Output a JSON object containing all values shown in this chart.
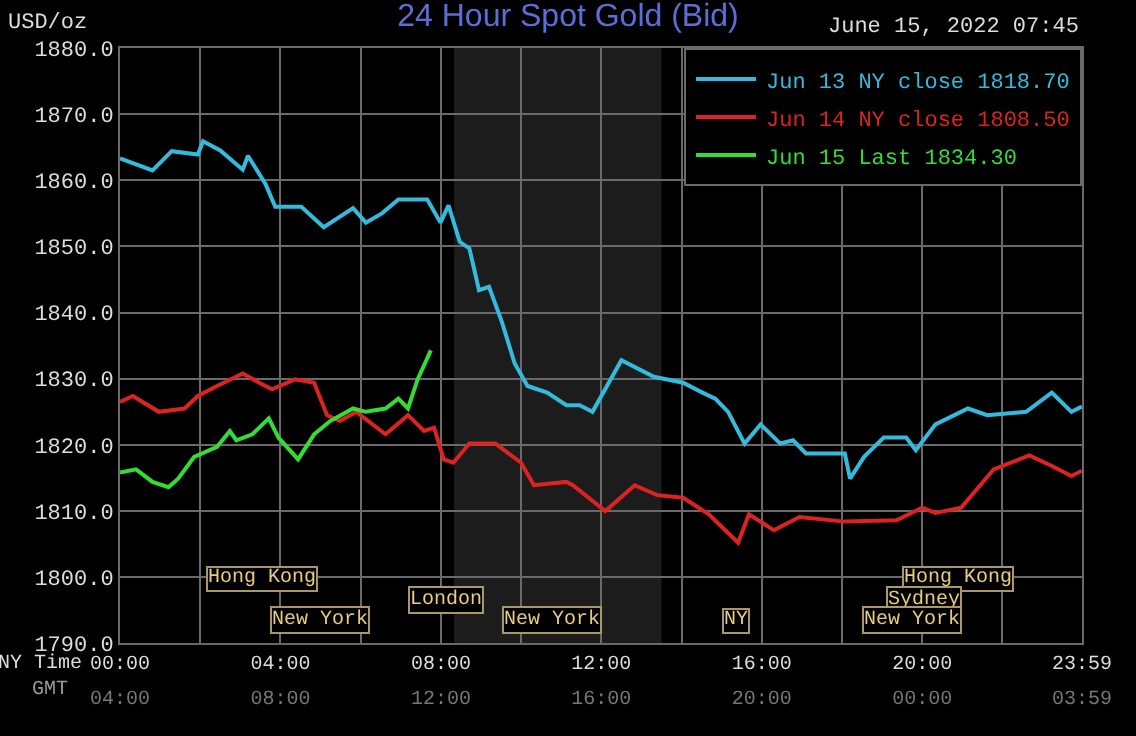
{
  "chart_data": {
    "type": "line",
    "title": "24 Hour Spot Gold (Bid)",
    "subtitle": "June 15, 2022 07:45",
    "ylabel": "USD/oz",
    "xlabel": "NY Time",
    "x2label": "GMT",
    "xlim": [
      0,
      23.983
    ],
    "ylim": [
      1790,
      1880
    ],
    "xticks": [
      {
        "value": 0,
        "label": "00:00"
      },
      {
        "value": 2,
        "label": null
      },
      {
        "value": 4,
        "label": "04:00"
      },
      {
        "value": 6,
        "label": null
      },
      {
        "value": 8,
        "label": "08:00"
      },
      {
        "value": 10,
        "label": null
      },
      {
        "value": 12,
        "label": "12:00"
      },
      {
        "value": 14,
        "label": null
      },
      {
        "value": 16,
        "label": "16:00"
      },
      {
        "value": 18,
        "label": null
      },
      {
        "value": 20,
        "label": "20:00"
      },
      {
        "value": 22,
        "label": null
      },
      {
        "value": 23.983,
        "label": "23:59"
      }
    ],
    "x2lim": [
      "2022-06-15T04:00",
      "2022-06-16T03:59"
    ],
    "x2ticks": [
      {
        "value": "2022-06-15T04:00",
        "label": "04:00"
      },
      {
        "value": "2022-06-15T08:00",
        "label": "08:00"
      },
      {
        "value": "2022-06-15T12:00",
        "label": "12:00"
      },
      {
        "value": "2022-06-15T16:00",
        "label": "16:00"
      },
      {
        "value": "2022-06-15T20:00",
        "label": "20:00"
      },
      {
        "value": "2022-06-16T00:00",
        "label": "00:00"
      },
      {
        "value": "2022-06-16T03:59",
        "label": "03:59"
      }
    ],
    "yticks": [
      {
        "value": 1790,
        "label": "1790.0"
      },
      {
        "value": 1800,
        "label": "1800.0"
      },
      {
        "value": 1810,
        "label": "1810.0"
      },
      {
        "value": 1820,
        "label": "1820.0"
      },
      {
        "value": 1830,
        "label": "1830.0"
      },
      {
        "value": 1840,
        "label": "1840.0"
      },
      {
        "value": 1850,
        "label": "1850.0"
      },
      {
        "value": 1860,
        "label": "1860.0"
      },
      {
        "value": 1870,
        "label": "1870.0"
      },
      {
        "value": 1880,
        "label": "1880.0"
      }
    ],
    "grid": true,
    "legend": "top right",
    "marker": "none",
    "line_style": "solid",
    "bands": [
      {
        "axis": "x",
        "from": 8.33,
        "to": 13.5,
        "color": "#1c1c1c"
      }
    ],
    "series": [
      {
        "name": "Jun 13 NY close 1818.70",
        "color": "#33bbdd",
        "x": [
          0,
          0.81,
          1.29,
          1.94,
          2.07,
          2.5,
          3.06,
          3.19,
          3.63,
          3.87,
          4.52,
          5.08,
          5.81,
          6.13,
          6.53,
          6.94,
          7.66,
          7.99,
          8.19,
          8.47,
          8.71,
          8.95,
          9.2,
          9.52,
          9.84,
          10.16,
          10.65,
          11.13,
          11.46,
          11.78,
          12.5,
          13.31,
          14.04,
          14.52,
          14.84,
          15.16,
          15.57,
          15.97,
          16.46,
          16.78,
          17.1,
          18.07,
          18.2,
          18.55,
          19.04,
          19.6,
          19.84,
          20.33,
          21.14,
          21.62,
          22.59,
          23.23,
          23.72,
          23.98
        ],
        "values": [
          1863.3,
          1861.5,
          1864.4,
          1863.9,
          1865.9,
          1864.5,
          1861.6,
          1863.7,
          1859.4,
          1856.0,
          1856.0,
          1852.9,
          1855.8,
          1853.6,
          1855.0,
          1857.1,
          1857.1,
          1853.6,
          1856.2,
          1850.7,
          1849.7,
          1843.4,
          1843.9,
          1838.6,
          1832.3,
          1828.9,
          1827.9,
          1826.0,
          1826.0,
          1825.0,
          1832.8,
          1830.3,
          1829.4,
          1827.9,
          1827.0,
          1825.0,
          1820.2,
          1823.1,
          1820.2,
          1820.7,
          1818.7,
          1818.7,
          1814.9,
          1818.2,
          1821.1,
          1821.1,
          1819.2,
          1823.1,
          1825.5,
          1824.5,
          1825.0,
          1827.9,
          1825.0,
          1825.8
        ]
      },
      {
        "name": "Jun 14 NY close 1808.50",
        "color": "#dd2222",
        "x": [
          0,
          0.32,
          0.97,
          1.61,
          1.94,
          2.42,
          3.06,
          3.47,
          3.79,
          4.36,
          4.84,
          5.16,
          5.48,
          5.89,
          6.62,
          7.18,
          7.58,
          7.83,
          8.07,
          8.31,
          8.71,
          9.36,
          10.0,
          10.32,
          11.13,
          11.29,
          12.1,
          12.83,
          13.39,
          14.04,
          14.68,
          15.09,
          15.41,
          15.68,
          16.3,
          16.94,
          18.07,
          19.36,
          20.0,
          20.33,
          20.97,
          21.78,
          22.67,
          23.23,
          23.72,
          23.98
        ],
        "values": [
          1826.5,
          1827.4,
          1825.0,
          1825.5,
          1827.4,
          1828.9,
          1830.8,
          1829.4,
          1828.4,
          1829.9,
          1829.4,
          1824.5,
          1823.6,
          1825.0,
          1821.6,
          1824.5,
          1822.1,
          1822.6,
          1817.8,
          1817.3,
          1820.2,
          1820.2,
          1817.3,
          1813.9,
          1814.4,
          1813.9,
          1810.0,
          1813.9,
          1812.4,
          1812.0,
          1809.5,
          1807.1,
          1805.2,
          1809.5,
          1807.1,
          1809.1,
          1808.4,
          1808.6,
          1810.5,
          1809.7,
          1810.5,
          1816.3,
          1818.4,
          1816.8,
          1815.3,
          1816.1
        ]
      },
      {
        "name": "Jun 15 Last 1834.30",
        "color": "#33dd33",
        "x": [
          0,
          0.4,
          0.81,
          1.21,
          1.45,
          1.85,
          2.42,
          2.74,
          2.9,
          3.3,
          3.71,
          3.95,
          4.44,
          4.84,
          5.24,
          5.81,
          6.13,
          6.62,
          6.94,
          7.18,
          7.42,
          7.75
        ],
        "values": [
          1815.8,
          1816.3,
          1814.4,
          1813.6,
          1814.9,
          1818.2,
          1819.7,
          1822.1,
          1820.7,
          1821.6,
          1824.0,
          1821.1,
          1817.8,
          1821.6,
          1823.6,
          1825.5,
          1825.0,
          1825.5,
          1827.0,
          1825.5,
          1829.9,
          1834.3
        ]
      }
    ],
    "annotations": [
      "Hong Kong",
      "London",
      "New York",
      "New York",
      "NY",
      "Hong Kong",
      "Sydney",
      "New York"
    ]
  }
}
